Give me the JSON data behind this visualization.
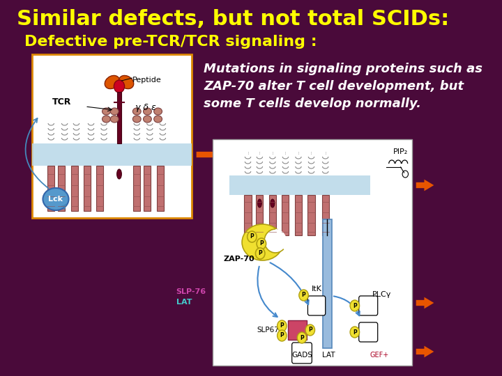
{
  "title": "Similar defects, but not total SCIDs:",
  "subtitle": "Defective pre-TCR/TCR signaling :",
  "annotation_text": "Mutations in signaling proteins such as\nZAP-70 alter T cell development, but\nsome T cells develop normally.",
  "bg_color": "#4a0a3a",
  "title_color": "#ffff00",
  "subtitle_color": "#ffff00",
  "annotation_color": "#ffffff",
  "title_fontsize": 22,
  "subtitle_fontsize": 16,
  "annotation_fontsize": 13
}
